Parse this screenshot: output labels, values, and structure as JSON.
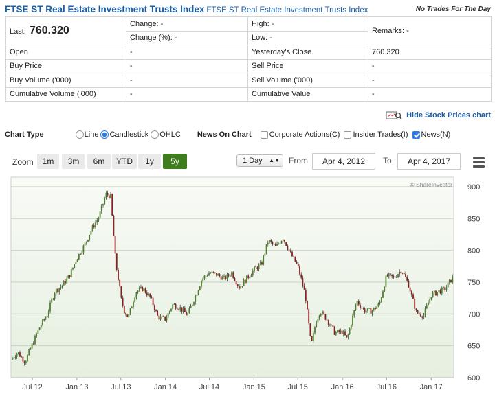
{
  "header": {
    "title": "FTSE ST Real Estate Investment Trusts Index",
    "subtitle": "FTSE ST Real Estate Investment Trusts Index",
    "no_trades": "No Trades For The Day"
  },
  "quote": {
    "last_label": "Last:",
    "last_value": "760.320",
    "change": "Change: -",
    "change_pct": "Change (%): -",
    "high": "High: -",
    "low": "Low: -",
    "remarks": "Remarks: -",
    "rows": [
      {
        "k1": "Open",
        "v1": "-",
        "k2": "Yesterday's Close",
        "v2": "760.320"
      },
      {
        "k1": "Buy Price",
        "v1": "-",
        "k2": "Sell Price",
        "v2": "-"
      },
      {
        "k1": "Buy Volume ('000)",
        "v1": "-",
        "k2": "Sell Volume ('000)",
        "v2": "-"
      },
      {
        "k1": "Cumulative Volume ('000)",
        "v1": "-",
        "k2": "Cumulative Value",
        "v2": "-"
      }
    ]
  },
  "hide_chart_label": "Hide Stock Prices chart",
  "chart_type": {
    "label": "Chart Type",
    "options": [
      "Line",
      "Candlestick",
      "OHLC"
    ],
    "selected": "Candlestick"
  },
  "news_on_chart": {
    "label": "News On Chart",
    "options": [
      {
        "label": "Corporate Actions(C)",
        "checked": false
      },
      {
        "label": "Insider Trades(I)",
        "checked": false
      },
      {
        "label": "News(N)",
        "checked": true
      }
    ]
  },
  "zoom": {
    "label": "Zoom",
    "buttons": [
      "1m",
      "3m",
      "6m",
      "YTD",
      "1y",
      "5y"
    ],
    "active": "5y"
  },
  "interval": "1 Day",
  "from_label": "From",
  "from_date": "Apr 4, 2012",
  "to_label": "To",
  "to_date": "Apr 4, 2017",
  "colors": {
    "accent": "#1a5fa8",
    "active_zoom": "#3e7d1e",
    "candle_up": "#4f7f2a",
    "candle_down": "#8a2020",
    "plot_bg_top": "#f8fbf6",
    "plot_bg_bottom": "#e6efe0"
  },
  "chart_data": {
    "type": "line",
    "credit": "© ShareInvestor",
    "x_ticks": [
      "Jul 12",
      "Jan 13",
      "Jul 13",
      "Jan 14",
      "Jul 14",
      "Jan 15",
      "Jul 15",
      "Jan 16",
      "Jul 16",
      "Jan 17"
    ],
    "y_ticks": [
      600,
      650,
      700,
      750,
      800,
      850,
      900
    ],
    "ylim": [
      600,
      915
    ],
    "xlim": [
      "2012-04-04",
      "2017-04-04"
    ],
    "series": [
      {
        "points": [
          [
            "2012-04-04",
            628
          ],
          [
            "2012-05-01",
            640
          ],
          [
            "2012-06-01",
            625
          ],
          [
            "2012-07-01",
            652
          ],
          [
            "2012-08-01",
            680
          ],
          [
            "2012-09-01",
            700
          ],
          [
            "2012-10-01",
            735
          ],
          [
            "2012-11-01",
            745
          ],
          [
            "2012-12-01",
            760
          ],
          [
            "2013-01-01",
            788
          ],
          [
            "2013-02-01",
            808
          ],
          [
            "2013-03-01",
            832
          ],
          [
            "2013-04-01",
            852
          ],
          [
            "2013-05-01",
            888
          ],
          [
            "2013-05-20",
            885
          ],
          [
            "2013-06-10",
            780
          ],
          [
            "2013-06-25",
            745
          ],
          [
            "2013-07-01",
            725
          ],
          [
            "2013-07-15",
            705
          ],
          [
            "2013-08-01",
            695
          ],
          [
            "2013-09-01",
            735
          ],
          [
            "2013-10-01",
            740
          ],
          [
            "2013-11-01",
            725
          ],
          [
            "2013-12-01",
            695
          ],
          [
            "2014-01-01",
            692
          ],
          [
            "2014-02-01",
            715
          ],
          [
            "2014-03-01",
            710
          ],
          [
            "2014-04-01",
            698
          ],
          [
            "2014-05-01",
            725
          ],
          [
            "2014-06-01",
            755
          ],
          [
            "2014-07-01",
            765
          ],
          [
            "2014-08-01",
            762
          ],
          [
            "2014-09-01",
            755
          ],
          [
            "2014-10-01",
            765
          ],
          [
            "2014-11-01",
            742
          ],
          [
            "2014-12-01",
            755
          ],
          [
            "2015-01-01",
            770
          ],
          [
            "2015-02-01",
            778
          ],
          [
            "2015-03-01",
            815
          ],
          [
            "2015-04-01",
            805
          ],
          [
            "2015-05-01",
            820
          ],
          [
            "2015-06-01",
            795
          ],
          [
            "2015-07-01",
            775
          ],
          [
            "2015-08-01",
            730
          ],
          [
            "2015-08-25",
            650
          ],
          [
            "2015-09-15",
            690
          ],
          [
            "2015-10-01",
            705
          ],
          [
            "2015-11-01",
            690
          ],
          [
            "2015-12-01",
            670
          ],
          [
            "2016-01-01",
            672
          ],
          [
            "2016-01-20",
            660
          ],
          [
            "2016-02-15",
            700
          ],
          [
            "2016-03-01",
            720
          ],
          [
            "2016-04-01",
            705
          ],
          [
            "2016-05-01",
            705
          ],
          [
            "2016-06-01",
            715
          ],
          [
            "2016-07-01",
            760
          ],
          [
            "2016-08-01",
            757
          ],
          [
            "2016-09-01",
            770
          ],
          [
            "2016-10-01",
            745
          ],
          [
            "2016-11-01",
            702
          ],
          [
            "2016-12-01",
            698
          ],
          [
            "2017-01-01",
            730
          ],
          [
            "2017-02-01",
            735
          ],
          [
            "2017-03-01",
            740
          ],
          [
            "2017-04-04",
            760
          ]
        ]
      }
    ]
  }
}
